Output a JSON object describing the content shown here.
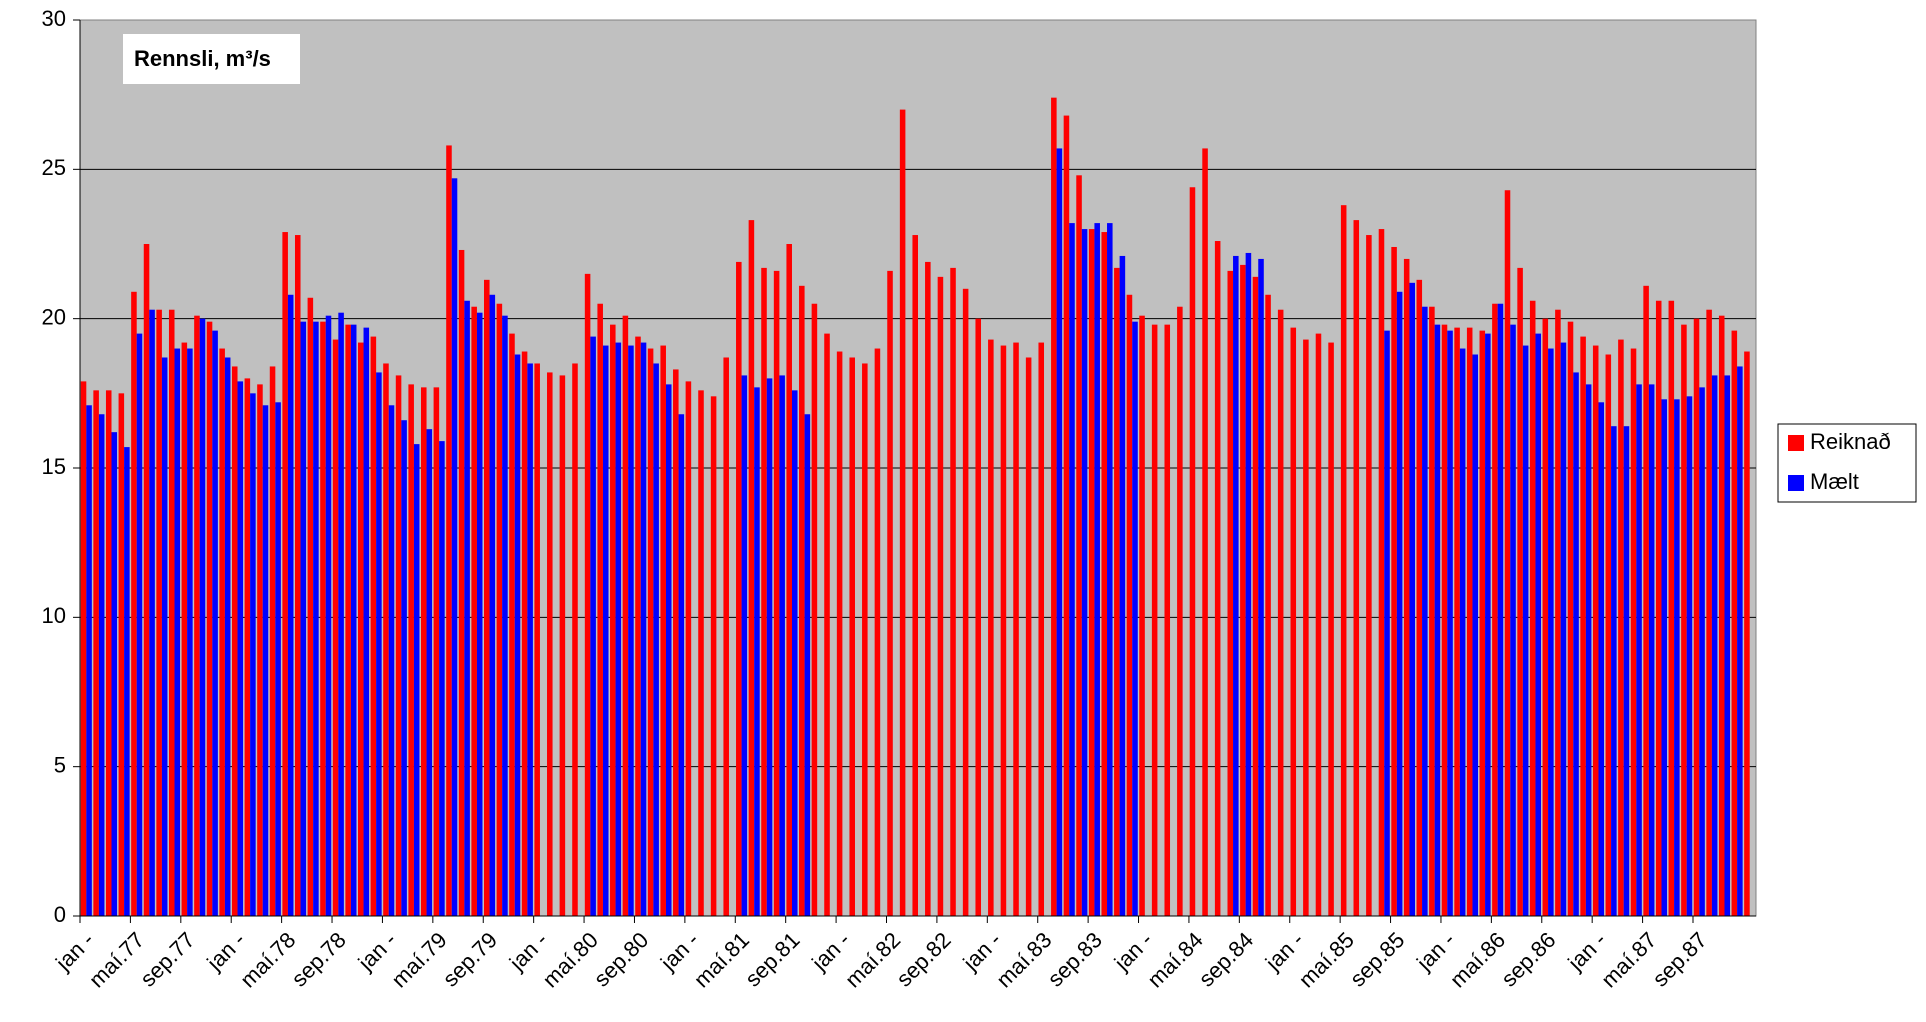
{
  "chart_data": {
    "type": "bar",
    "title": "Rennsli, m³/s",
    "categories": [
      "jan -",
      null,
      null,
      null,
      "maí.77",
      null,
      null,
      null,
      "sep.77",
      null,
      null,
      null,
      "jan -",
      null,
      null,
      null,
      "maí.78",
      null,
      null,
      null,
      "sep.78",
      null,
      null,
      null,
      "jan -",
      null,
      null,
      null,
      "maí.79",
      null,
      null,
      null,
      "sep.79",
      null,
      null,
      null,
      "jan -",
      null,
      null,
      null,
      "maí.80",
      null,
      null,
      null,
      "sep.80",
      null,
      null,
      null,
      "jan -",
      null,
      null,
      null,
      "maí.81",
      null,
      null,
      null,
      "sep.81",
      null,
      null,
      null,
      "jan -",
      null,
      null,
      null,
      "maí.82",
      null,
      null,
      null,
      "sep.82",
      null,
      null,
      null,
      "jan -",
      null,
      null,
      null,
      "maí.83",
      null,
      null,
      null,
      "sep.83",
      null,
      null,
      null,
      "jan -",
      null,
      null,
      null,
      "maí.84",
      null,
      null,
      null,
      "sep.84",
      null,
      null,
      null,
      "jan -",
      null,
      null,
      null,
      "maí.85",
      null,
      null,
      null,
      "sep.85",
      null,
      null,
      null,
      "jan -",
      null,
      null,
      null,
      "maí.86",
      null,
      null,
      null,
      "sep.86",
      null,
      null,
      null,
      "jan -",
      null,
      null,
      null,
      "maí.87",
      null,
      null,
      null,
      "sep.87",
      null,
      null,
      null,
      null
    ],
    "series": [
      {
        "name": "Reiknað",
        "color": "#ff0000",
        "values": [
          17.9,
          17.6,
          17.6,
          17.5,
          20.9,
          22.5,
          20.3,
          20.3,
          19.2,
          20.1,
          19.9,
          19.0,
          18.4,
          18.0,
          17.8,
          18.4,
          22.9,
          22.8,
          20.7,
          19.9,
          19.3,
          19.8,
          19.2,
          19.4,
          18.5,
          18.1,
          17.8,
          17.7,
          17.7,
          25.8,
          22.3,
          20.4,
          21.3,
          20.5,
          19.5,
          18.9,
          18.5,
          18.2,
          18.1,
          18.5,
          21.5,
          20.5,
          19.8,
          20.1,
          19.4,
          19.0,
          19.1,
          18.3,
          17.9,
          17.6,
          17.4,
          18.7,
          21.9,
          23.3,
          21.7,
          21.6,
          22.5,
          21.1,
          20.5,
          19.5,
          18.9,
          18.7,
          18.5,
          19.0,
          21.6,
          27.0,
          22.8,
          21.9,
          21.4,
          21.7,
          21.0,
          20.0,
          19.3,
          19.1,
          19.2,
          18.7,
          19.2,
          27.4,
          26.8,
          24.8,
          23.0,
          22.9,
          21.7,
          20.8,
          20.1,
          19.8,
          19.8,
          20.4,
          24.4,
          25.7,
          22.6,
          21.6,
          21.8,
          21.4,
          20.8,
          20.3,
          19.7,
          19.3,
          19.5,
          19.2,
          23.8,
          23.3,
          22.8,
          23.0,
          22.4,
          22.0,
          21.3,
          20.4,
          19.8,
          19.7,
          19.7,
          19.6,
          20.5,
          24.3,
          21.7,
          20.6,
          20.0,
          20.3,
          19.9,
          19.4,
          19.1,
          18.8,
          19.3,
          19.0,
          21.1,
          20.6,
          20.6,
          19.8,
          20.0,
          20.3,
          20.1,
          19.6,
          18.9
        ]
      },
      {
        "name": "Mælt",
        "color": "#0000ff",
        "values": [
          17.1,
          16.8,
          16.2,
          15.7,
          19.5,
          20.3,
          18.7,
          19.0,
          19.0,
          20.0,
          19.6,
          18.7,
          17.9,
          17.5,
          17.1,
          17.2,
          20.8,
          19.9,
          19.9,
          20.1,
          20.2,
          19.8,
          19.7,
          18.2,
          17.1,
          16.6,
          15.8,
          16.3,
          15.9,
          24.7,
          20.6,
          20.2,
          20.8,
          20.1,
          18.8,
          18.5,
          null,
          null,
          null,
          null,
          19.4,
          19.1,
          19.2,
          19.1,
          19.2,
          18.5,
          17.8,
          16.8,
          null,
          null,
          null,
          null,
          18.1,
          17.7,
          18.0,
          18.1,
          17.6,
          16.8,
          null,
          null,
          null,
          null,
          null,
          null,
          null,
          null,
          null,
          null,
          null,
          null,
          null,
          null,
          null,
          null,
          null,
          null,
          null,
          25.7,
          23.2,
          23.0,
          23.2,
          23.2,
          22.1,
          19.9,
          null,
          null,
          null,
          null,
          null,
          null,
          null,
          22.1,
          22.2,
          22.0,
          null,
          null,
          null,
          null,
          null,
          null,
          null,
          null,
          null,
          19.6,
          20.9,
          21.2,
          20.4,
          19.8,
          19.6,
          19.0,
          18.8,
          19.5,
          20.5,
          19.8,
          19.1,
          19.5,
          19.0,
          19.2,
          18.2,
          17.8,
          17.2,
          16.4,
          16.4,
          17.8,
          17.8,
          17.3,
          17.3,
          17.4,
          17.7,
          18.1,
          18.1,
          18.4,
          null
        ]
      }
    ],
    "ylim": [
      0,
      30
    ],
    "yticks": [
      0,
      5,
      10,
      15,
      20,
      25,
      30
    ],
    "grid": true,
    "legend": "right"
  }
}
